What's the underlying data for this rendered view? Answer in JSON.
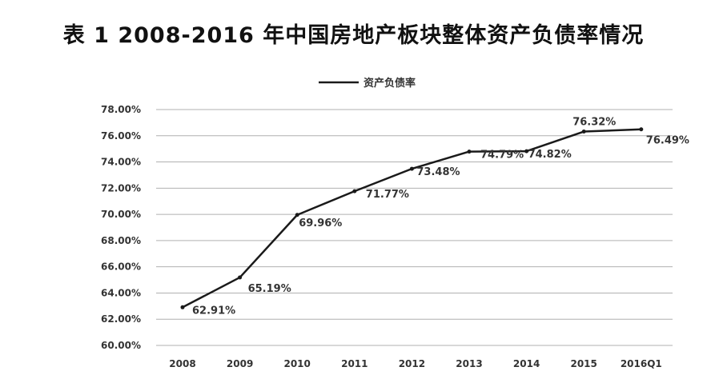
{
  "title": "表 1  2008-2016 年中国房地产板块整体资产负债率情况",
  "colors": {
    "line": "#1a1a1a",
    "grid": "#b0b0b0",
    "text": "#333333"
  },
  "chart_data": {
    "type": "line",
    "categories": [
      "2008",
      "2009",
      "2010",
      "2011",
      "2012",
      "2013",
      "2014",
      "2015",
      "2016Q1"
    ],
    "series": [
      {
        "name": "资产负债率",
        "values": [
          62.91,
          65.19,
          69.96,
          71.77,
          73.48,
          74.79,
          74.82,
          76.32,
          76.49
        ]
      }
    ],
    "data_labels": [
      "62.91%",
      "65.19%",
      "69.96%",
      "71.77%",
      "73.48%",
      "74.79%",
      "74.82%",
      "76.32%",
      "76.49%"
    ],
    "y_ticks": [
      "60.00%",
      "62.00%",
      "64.00%",
      "66.00%",
      "68.00%",
      "70.00%",
      "72.00%",
      "74.00%",
      "76.00%",
      "78.00%"
    ],
    "ylim": [
      60,
      78
    ],
    "grid": true,
    "legend_position": "top-center"
  }
}
